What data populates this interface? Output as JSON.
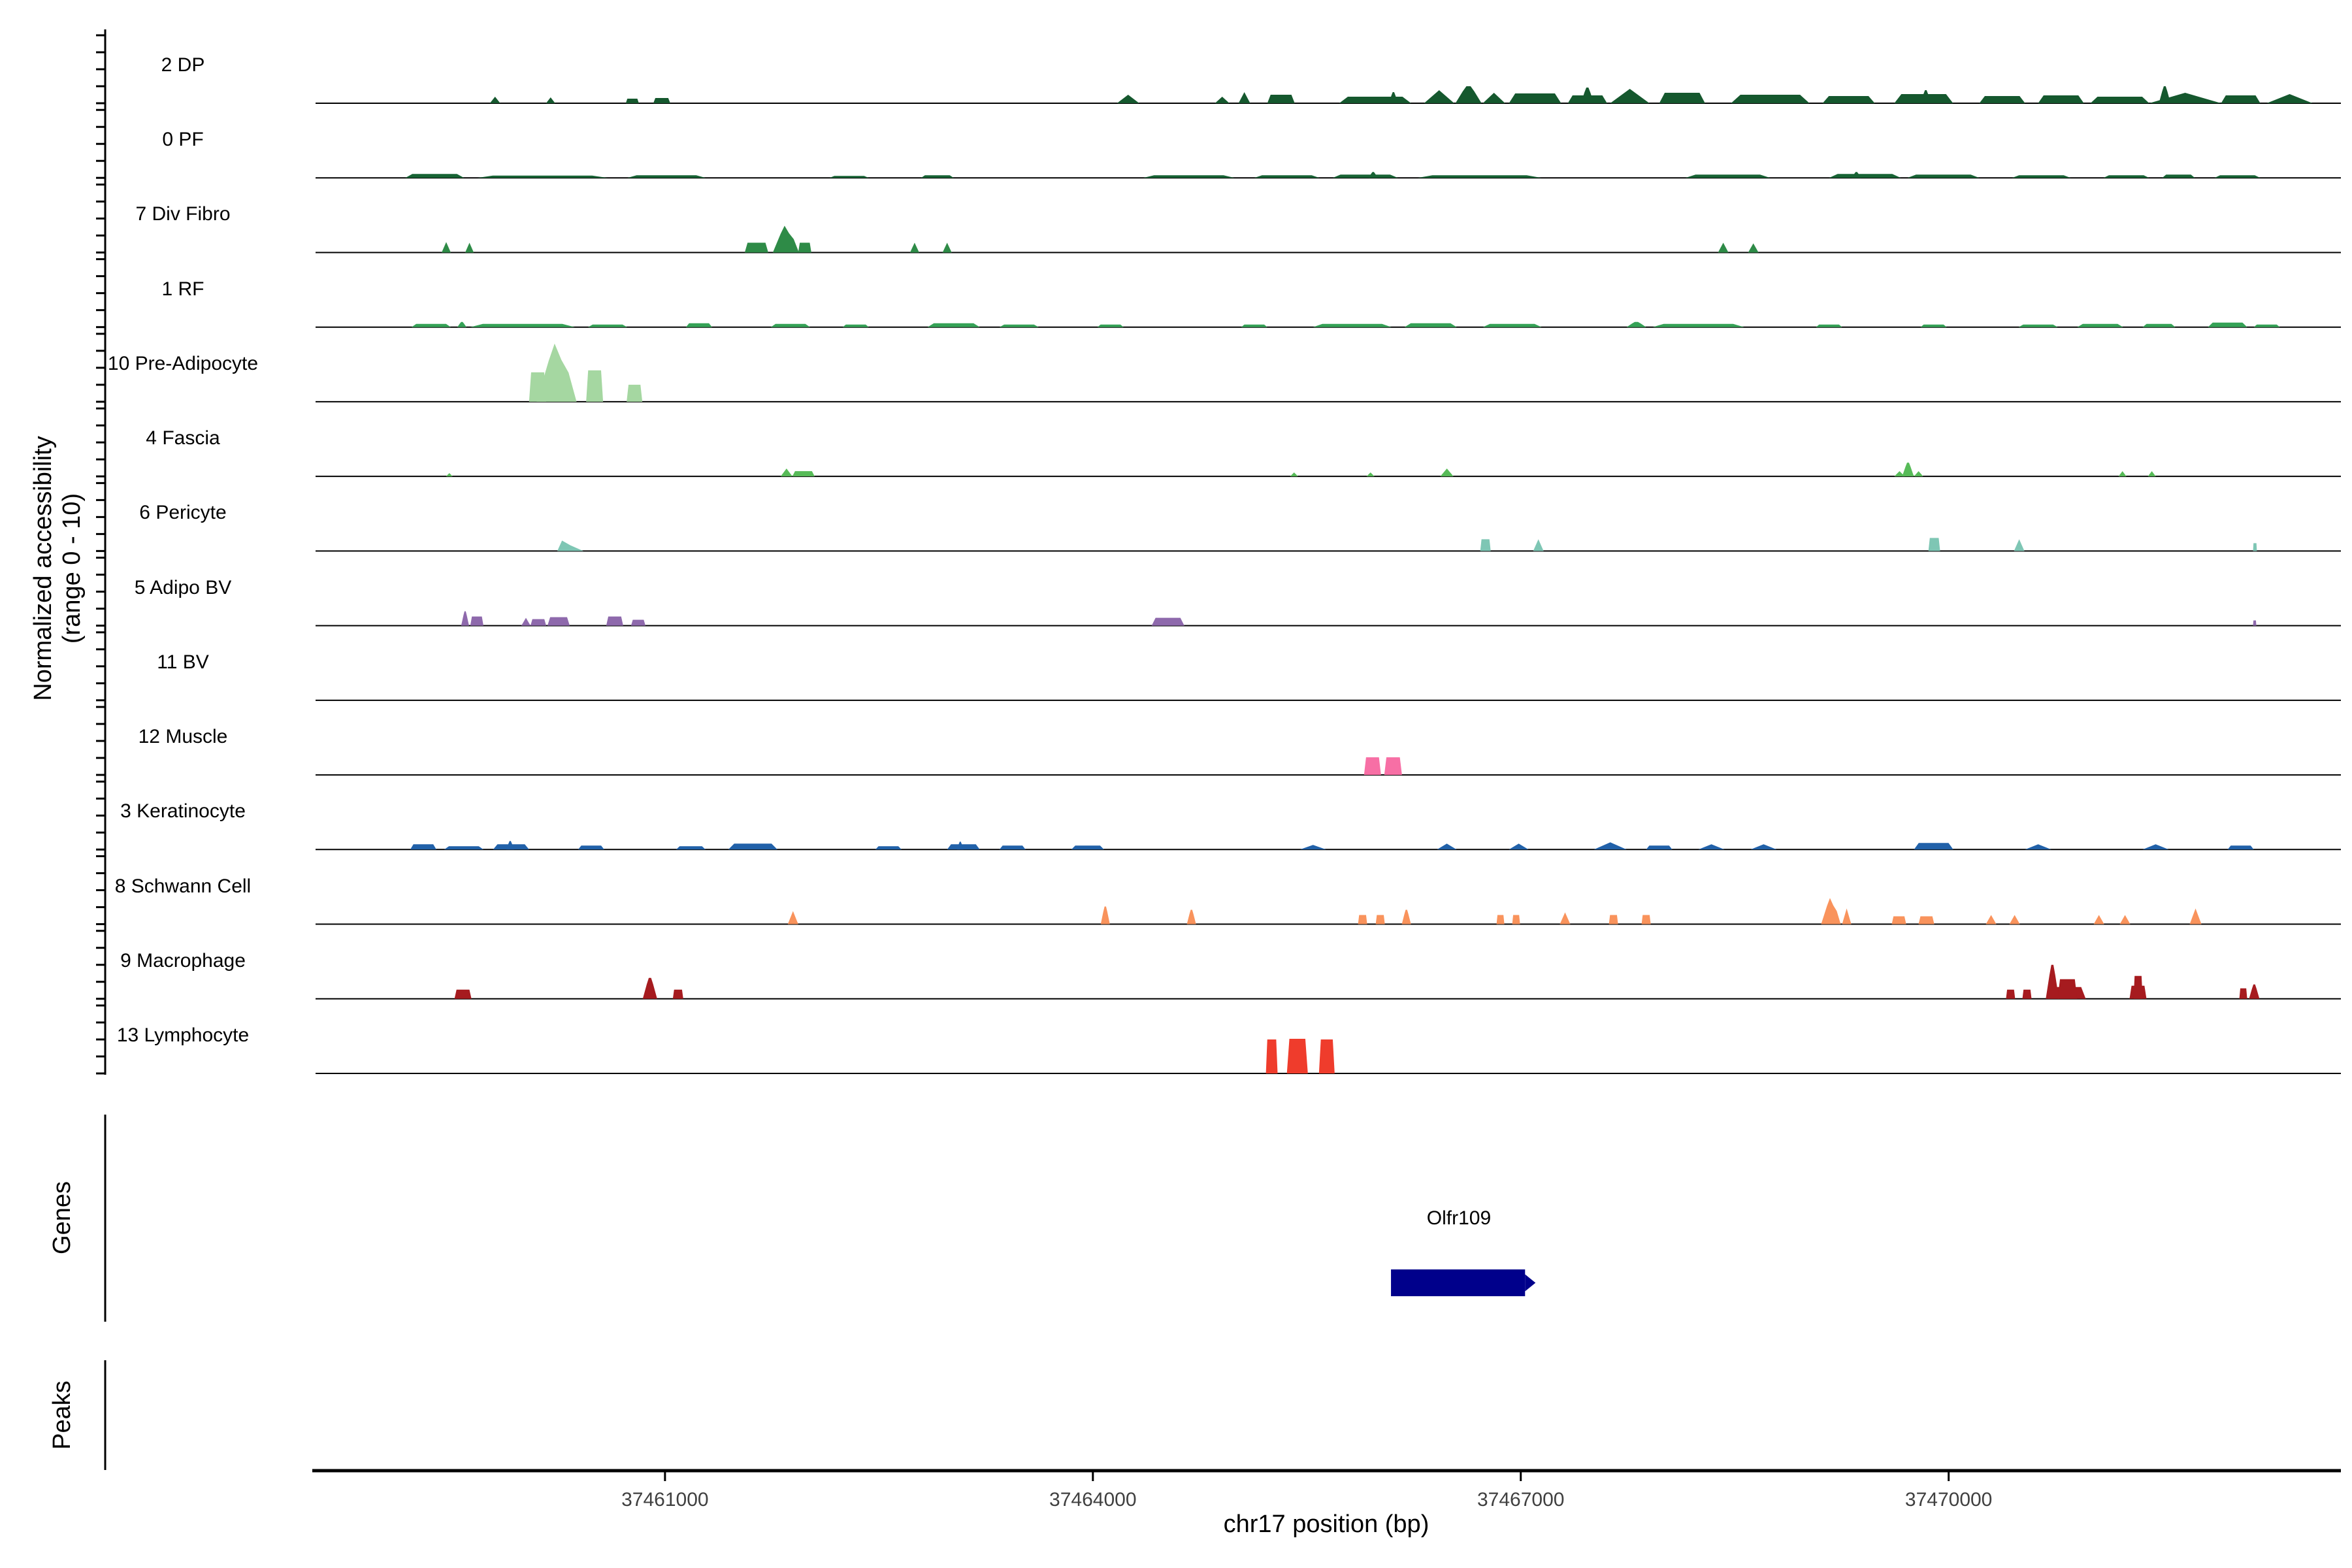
{
  "figure": {
    "y_axis_title_line1": "Normalized accessibility",
    "y_axis_title_line2": "(range 0 - 10)",
    "x_axis_title": "chr17 position (bp)",
    "genes_section_label": "Genes",
    "peaks_section_label": "Peaks"
  },
  "chart_data": {
    "type": "area",
    "description": "Single-cell ATAC coverage plot: per-cluster normalized accessibility tracks over a genomic window, with gene annotation row and empty peaks row",
    "region": {
      "chrom": "chr17",
      "start": 37458550,
      "end": 37472750
    },
    "x_ticks": [
      37461000,
      37464000,
      37467000,
      37470000
    ],
    "y_range_per_track": [
      0,
      10
    ],
    "grid": false,
    "tracks": [
      {
        "label": "2 DP",
        "color": "#15582E",
        "peaks": [
          [
            37459772,
            73,
            1.0,
            1
          ],
          [
            37460166,
            64,
            0.9,
            1
          ],
          [
            37460725,
            92,
            0.7,
            0
          ],
          [
            37460918,
            119,
            0.8,
            0
          ],
          [
            37464169,
            156,
            1.3,
            1
          ],
          [
            37464856,
            101,
            1.0,
            1
          ],
          [
            37465021,
            82,
            1.7,
            1
          ],
          [
            37465223,
            192,
            1.3,
            0
          ],
          [
            37465727,
            504,
            1.0,
            0
          ],
          [
            37466075,
            64,
            1.7,
            2
          ],
          [
            37466322,
            211,
            2.0,
            1
          ],
          [
            37466542,
            183,
            2.6,
            2
          ],
          [
            37466734,
            156,
            1.6,
            1
          ],
          [
            37466917,
            366,
            1.5,
            0
          ],
          [
            37467330,
            275,
            1.2,
            0
          ],
          [
            37467421,
            92,
            2.4,
            2
          ],
          [
            37467627,
            275,
            2.2,
            1
          ],
          [
            37467971,
            321,
            1.6,
            0
          ],
          [
            37468474,
            550,
            1.3,
            0
          ],
          [
            37469116,
            366,
            1.1,
            0
          ],
          [
            37469619,
            412,
            1.4,
            0
          ],
          [
            37469803,
            73,
            2.0,
            2
          ],
          [
            37470215,
            321,
            1.1,
            0
          ],
          [
            37470627,
            321,
            1.2,
            0
          ],
          [
            37470994,
            412,
            1.0,
            0
          ],
          [
            37471406,
            504,
            1.6,
            1
          ],
          [
            37471474,
            82,
            2.6,
            2
          ],
          [
            37471910,
            275,
            1.2,
            0
          ],
          [
            37472230,
            321,
            1.4,
            1
          ]
        ]
      },
      {
        "label": "0 PF",
        "color": "#176334",
        "peaks": [
          [
            37459179,
            412,
            0.6,
            0
          ],
          [
            37459683,
            916,
            0.35,
            0
          ],
          [
            37460735,
            550,
            0.4,
            0
          ],
          [
            37462154,
            275,
            0.3,
            0
          ],
          [
            37462795,
            229,
            0.4,
            0
          ],
          [
            37464352,
            641,
            0.4,
            0
          ],
          [
            37465131,
            458,
            0.4,
            0
          ],
          [
            37465681,
            458,
            0.5,
            0
          ],
          [
            37465933,
            64,
            0.9,
            2
          ],
          [
            37466276,
            870,
            0.4,
            0
          ],
          [
            37468154,
            595,
            0.5,
            0
          ],
          [
            37469161,
            504,
            0.6,
            0
          ],
          [
            37469321,
            64,
            0.9,
            2
          ],
          [
            37469711,
            504,
            0.5,
            0
          ],
          [
            37470444,
            412,
            0.4,
            0
          ],
          [
            37471085,
            321,
            0.4,
            0
          ],
          [
            37471497,
            229,
            0.5,
            0
          ],
          [
            37471864,
            321,
            0.4,
            0
          ]
        ]
      },
      {
        "label": "7 Div Fibro",
        "color": "#2E8B47",
        "peaks": [
          [
            37459434,
            64,
            1.6,
            1
          ],
          [
            37459599,
            60,
            1.5,
            1
          ],
          [
            37461559,
            165,
            1.5,
            0
          ],
          [
            37461756,
            183,
            4.1,
            3
          ],
          [
            37461934,
            92,
            1.5,
            0
          ],
          [
            37462718,
            64,
            1.5,
            1
          ],
          [
            37462946,
            64,
            1.5,
            1
          ],
          [
            37468383,
            73,
            1.5,
            1
          ],
          [
            37468594,
            73,
            1.4,
            1
          ]
        ]
      },
      {
        "label": "1 RF",
        "color": "#35A257",
        "peaks": [
          [
            37459223,
            275,
            0.5,
            0
          ],
          [
            37459544,
            64,
            0.8,
            2
          ],
          [
            37459635,
            733,
            0.5,
            0
          ],
          [
            37460460,
            275,
            0.4,
            0
          ],
          [
            37461147,
            183,
            0.6,
            0
          ],
          [
            37461742,
            275,
            0.5,
            0
          ],
          [
            37462246,
            183,
            0.4,
            0
          ],
          [
            37462841,
            366,
            0.6,
            0
          ],
          [
            37463345,
            275,
            0.4,
            0
          ],
          [
            37464032,
            183,
            0.4,
            0
          ],
          [
            37465040,
            183,
            0.4,
            0
          ],
          [
            37465543,
            550,
            0.5,
            0
          ],
          [
            37466185,
            366,
            0.6,
            0
          ],
          [
            37466734,
            412,
            0.5,
            0
          ],
          [
            37467742,
            137,
            0.8,
            2
          ],
          [
            37467925,
            641,
            0.5,
            0
          ],
          [
            37469070,
            183,
            0.4,
            0
          ],
          [
            37469803,
            183,
            0.4,
            0
          ],
          [
            37470490,
            275,
            0.4,
            0
          ],
          [
            37470902,
            321,
            0.5,
            0
          ],
          [
            37471360,
            229,
            0.5,
            0
          ],
          [
            37471818,
            275,
            0.7,
            0
          ],
          [
            37472139,
            183,
            0.4,
            0
          ]
        ]
      },
      {
        "label": "10 Pre-Adipocyte",
        "color": "#A5D7A1",
        "peaks": [
          [
            37460047,
            120,
            4.5,
            0
          ],
          [
            37460100,
            280,
            8.9,
            3
          ],
          [
            37460447,
            119,
            4.8,
            0
          ],
          [
            37460731,
            110,
            2.6,
            0
          ]
        ]
      },
      {
        "label": "4 Fascia",
        "color": "#57BB58",
        "peaks": [
          [
            37459465,
            46,
            0.5,
            1
          ],
          [
            37461811,
            82,
            1.2,
            1
          ],
          [
            37461893,
            156,
            0.8,
            0
          ],
          [
            37465383,
            55,
            0.6,
            1
          ],
          [
            37465919,
            55,
            0.6,
            1
          ],
          [
            37466436,
            92,
            1.2,
            1
          ],
          [
            37469619,
            73,
            0.8,
            1
          ],
          [
            37469674,
            82,
            2.1,
            2
          ],
          [
            37469757,
            64,
            0.8,
            1
          ],
          [
            37471191,
            55,
            0.8,
            1
          ],
          [
            37471397,
            55,
            0.8,
            1
          ]
        ]
      },
      {
        "label": "6 Pericyte",
        "color": "#7EC6B4",
        "peaks": [
          [
            37460245,
            183,
            1.6,
            4
          ],
          [
            37466716,
            73,
            1.8,
            0
          ],
          [
            37467087,
            73,
            1.8,
            1
          ],
          [
            37469858,
            82,
            2.0,
            0
          ],
          [
            37470458,
            73,
            1.8,
            1
          ],
          [
            37472134,
            27,
            1.2,
            0
          ]
        ]
      },
      {
        "label": "5 Adipo BV",
        "color": "#8E69AC",
        "peaks": [
          [
            37459571,
            55,
            2.2,
            2
          ],
          [
            37459635,
            92,
            1.4,
            0
          ],
          [
            37459993,
            64,
            1.2,
            1
          ],
          [
            37460057,
            110,
            1.0,
            0
          ],
          [
            37460176,
            156,
            1.3,
            0
          ],
          [
            37460588,
            119,
            1.4,
            0
          ],
          [
            37460762,
            101,
            0.9,
            0
          ],
          [
            37464412,
            229,
            1.2,
            0
          ],
          [
            37472134,
            23,
            0.8,
            0
          ]
        ]
      },
      {
        "label": "11 BV",
        "color": "#999999",
        "peaks": []
      },
      {
        "label": "12 Muscle",
        "color": "#F76FA5",
        "peaks": [
          [
            37465901,
            119,
            2.7,
            0
          ],
          [
            37466043,
            124,
            2.7,
            0
          ]
        ]
      },
      {
        "label": "3 Keratinocyte",
        "color": "#2161A9",
        "peaks": [
          [
            37459214,
            183,
            0.8,
            0
          ],
          [
            37459452,
            275,
            0.5,
            0
          ],
          [
            37459795,
            252,
            0.8,
            0
          ],
          [
            37459887,
            55,
            1.3,
            2
          ],
          [
            37460391,
            183,
            0.6,
            0
          ],
          [
            37461078,
            206,
            0.5,
            0
          ],
          [
            37461444,
            344,
            0.9,
            0
          ],
          [
            37462475,
            183,
            0.5,
            0
          ],
          [
            37462978,
            229,
            0.8,
            0
          ],
          [
            37463047,
            46,
            1.2,
            2
          ],
          [
            37463345,
            183,
            0.6,
            0
          ],
          [
            37463849,
            229,
            0.6,
            0
          ],
          [
            37465452,
            183,
            0.7,
            1
          ],
          [
            37466413,
            137,
            0.9,
            1
          ],
          [
            37466917,
            137,
            0.9,
            1
          ],
          [
            37467513,
            229,
            1.1,
            1
          ],
          [
            37467879,
            183,
            0.6,
            0
          ],
          [
            37468245,
            183,
            0.8,
            1
          ],
          [
            37468611,
            183,
            0.8,
            1
          ],
          [
            37469757,
            275,
            1.0,
            0
          ],
          [
            37470536,
            183,
            0.8,
            1
          ],
          [
            37471360,
            183,
            0.8,
            1
          ],
          [
            37471956,
            183,
            0.6,
            0
          ]
        ]
      },
      {
        "label": "8 Schwann Cell",
        "color": "#F9935C",
        "peaks": [
          [
            37461861,
            73,
            2.0,
            1
          ],
          [
            37464055,
            64,
            2.7,
            2
          ],
          [
            37464659,
            64,
            2.2,
            2
          ],
          [
            37465859,
            64,
            1.4,
            0
          ],
          [
            37465983,
            64,
            1.4,
            0
          ],
          [
            37466166,
            64,
            2.2,
            2
          ],
          [
            37466830,
            55,
            1.4,
            0
          ],
          [
            37466940,
            55,
            1.4,
            0
          ],
          [
            37467274,
            73,
            1.8,
            1
          ],
          [
            37467618,
            64,
            1.4,
            0
          ],
          [
            37467847,
            64,
            1.4,
            0
          ],
          [
            37469106,
            137,
            4.0,
            3
          ],
          [
            37469253,
            64,
            2.4,
            1
          ],
          [
            37469601,
            101,
            1.2,
            0
          ],
          [
            37469789,
            110,
            1.2,
            0
          ],
          [
            37470261,
            73,
            1.4,
            1
          ],
          [
            37470426,
            73,
            1.4,
            1
          ],
          [
            37471017,
            73,
            1.4,
            1
          ],
          [
            37471200,
            73,
            1.4,
            1
          ],
          [
            37471690,
            82,
            2.4,
            1
          ]
        ]
      },
      {
        "label": "9 Macrophage",
        "color": "#A61B1F",
        "peaks": [
          [
            37459524,
            119,
            1.4,
            0
          ],
          [
            37460844,
            101,
            3.2,
            2
          ],
          [
            37461055,
            73,
            1.4,
            0
          ],
          [
            37470402,
            64,
            1.4,
            0
          ],
          [
            37470517,
            64,
            1.4,
            0
          ],
          [
            37470695,
            266,
            1.8,
            0
          ],
          [
            37470681,
            92,
            5.2,
            2
          ],
          [
            37470764,
            137,
            3.0,
            0
          ],
          [
            37471268,
            119,
            2.0,
            0
          ],
          [
            37471296,
            64,
            3.5,
            0
          ],
          [
            37472038,
            55,
            1.6,
            0
          ],
          [
            37472106,
            73,
            2.2,
            2
          ]
        ]
      },
      {
        "label": "13 Lymphocyte",
        "color": "#EF3C2C",
        "peaks": [
          [
            37465213,
            82,
            5.2,
            0
          ],
          [
            37465360,
            147,
            5.3,
            0
          ],
          [
            37465585,
            110,
            5.2,
            0
          ]
        ]
      }
    ],
    "genes": [
      {
        "name": "Olfr109",
        "start": 37466090,
        "end": 37467030,
        "strand": "+",
        "color": "#00008B"
      }
    ],
    "peaks_track": []
  }
}
